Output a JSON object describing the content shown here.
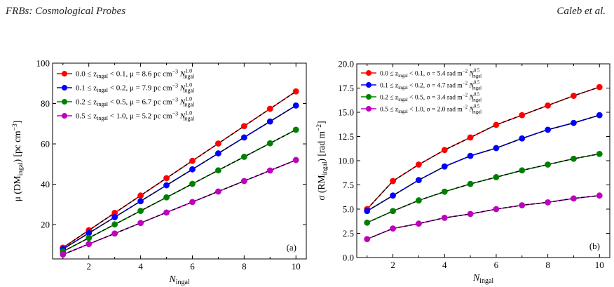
{
  "header": {
    "left": "FRBs: Cosmological Probes",
    "right": "Caleb et al."
  },
  "chart_data": [
    {
      "type": "line",
      "panel_label": "(a)",
      "xlabel_main": "N",
      "xlabel_sub": "ingal",
      "ylabel": "μ (DM",
      "ylabel_sub": "ingal",
      "ylabel_tail": ") [pc cm",
      "ylabel_sup": "−3",
      "ylabel_end": "]",
      "xlim": [
        0.6,
        10.4
      ],
      "ylim": [
        3,
        100
      ],
      "xticks": [
        2,
        4,
        6,
        8,
        10
      ],
      "yticks": [
        20,
        40,
        60,
        80,
        100
      ],
      "legend_position": "upper-left",
      "x": [
        1,
        2,
        3,
        4,
        5,
        6,
        7,
        8,
        9,
        10
      ],
      "series": [
        {
          "name": "0.0 ≤ z_ingal < 0.1, μ = 8.6 pc cm^-3 N_ingal^1.0",
          "label_range": "0.0 ≤ z",
          "label_range_sub": "ingal",
          "label_range_tail": " < 0.1, μ = 8.6 pc cm",
          "label_unit_sup": "−3",
          "label_var": " N",
          "label_var_sup": "1.0",
          "label_var_sub": "ingal",
          "color": "#ff0000",
          "values": [
            8.6,
            17.2,
            25.8,
            34.4,
            43.0,
            51.6,
            60.2,
            68.8,
            77.4,
            86.0
          ]
        },
        {
          "name": "0.1 ≤ z_ingal < 0.2, μ = 7.9 pc cm^-3 N_ingal^1.0",
          "label_range": "0.1 ≤ z",
          "label_range_sub": "ingal",
          "label_range_tail": " < 0.2, μ = 7.9 pc cm",
          "label_unit_sup": "−3",
          "label_var": " N",
          "label_var_sup": "1.0",
          "label_var_sub": "ingal",
          "color": "#0000ff",
          "values": [
            7.9,
            15.8,
            23.7,
            31.6,
            39.5,
            47.4,
            55.3,
            63.2,
            71.1,
            79.0
          ]
        },
        {
          "name": "0.2 ≤ z_ingal < 0.5, μ = 6.7 pc cm^-3 N_ingal^1.0",
          "label_range": "0.2 ≤ z",
          "label_range_sub": "ingal",
          "label_range_tail": " < 0.5, μ = 6.7 pc cm",
          "label_unit_sup": "−3",
          "label_var": " N",
          "label_var_sup": "1.0",
          "label_var_sub": "ingal",
          "color": "#008000",
          "values": [
            6.7,
            13.4,
            20.1,
            26.8,
            33.5,
            40.2,
            46.9,
            53.6,
            60.3,
            67.0
          ]
        },
        {
          "name": "0.5 ≤ z_ingal < 1.0, μ = 5.2 pc cm^-3 N_ingal^1.0",
          "label_range": "0.5 ≤ z",
          "label_range_sub": "ingal",
          "label_range_tail": " < 1.0, μ = 5.2 pc cm",
          "label_unit_sup": "−3",
          "label_var": " N",
          "label_var_sup": "1.0",
          "label_var_sub": "ingal",
          "color": "#bf00bf",
          "values": [
            5.2,
            10.4,
            15.6,
            20.8,
            26.0,
            31.2,
            36.4,
            41.6,
            46.8,
            52.0
          ]
        }
      ],
      "fit_color": "#000000"
    },
    {
      "type": "line",
      "panel_label": "(b)",
      "xlabel_main": "N",
      "xlabel_sub": "ingal",
      "ylabel": "σ (RM",
      "ylabel_sub": "ingal",
      "ylabel_tail": ") [rad m",
      "ylabel_sup": "−2",
      "ylabel_end": "]",
      "xlim": [
        0.6,
        10.4
      ],
      "ylim": [
        0,
        20
      ],
      "xticks": [
        2,
        4,
        6,
        8,
        10
      ],
      "yticks": [
        0.0,
        2.5,
        5.0,
        7.5,
        10.0,
        12.5,
        15.0,
        17.5,
        20.0
      ],
      "ytick_labels": [
        "0.0",
        "2.5",
        "5.0",
        "7.5",
        "10.0",
        "12.5",
        "15.0",
        "17.5",
        "20.0"
      ],
      "legend_position": "upper-left",
      "x": [
        1,
        2,
        3,
        4,
        5,
        6,
        7,
        8,
        9,
        10
      ],
      "series": [
        {
          "name": "0.0 ≤ z_ingal < 0.1, σ = 5.4 rad m^-2 N_ingal^0.5",
          "label_range": "0.0 ≤ z",
          "label_range_sub": "ingal",
          "label_range_tail": " < 0.1, σ = 5.4 rad m",
          "label_unit_sup": "−2",
          "label_var": " N",
          "label_var_sup": "0.5",
          "label_var_sub": "ingal",
          "color": "#ff0000",
          "values": [
            5.0,
            7.9,
            9.6,
            11.1,
            12.4,
            13.7,
            14.7,
            15.7,
            16.7,
            17.6
          ]
        },
        {
          "name": "0.1 ≤ z_ingal < 0.2, σ = 4.7 rad m^-2 N_ingal^0.5",
          "label_range": "0.1 ≤ z",
          "label_range_sub": "ingal",
          "label_range_tail": " < 0.2, σ = 4.7 rad m",
          "label_unit_sup": "−2",
          "label_var": " N",
          "label_var_sup": "0.5",
          "label_var_sub": "ingal",
          "color": "#0000ff",
          "values": [
            4.8,
            6.4,
            8.0,
            9.4,
            10.5,
            11.3,
            12.3,
            13.2,
            13.9,
            14.7
          ]
        },
        {
          "name": "0.2 ≤ z_ingal < 0.5, σ = 3.4 rad m^-2 N_ingal^0.5",
          "label_range": "0.2 ≤ z",
          "label_range_sub": "ingal",
          "label_range_tail": " < 0.5, σ = 3.4 rad m",
          "label_unit_sup": "−2",
          "label_var": " N",
          "label_var_sup": "0.5",
          "label_var_sub": "ingal",
          "color": "#008000",
          "values": [
            3.6,
            4.8,
            5.9,
            6.8,
            7.6,
            8.3,
            9.0,
            9.6,
            10.2,
            10.7
          ]
        },
        {
          "name": "0.5 ≤ z_ingal < 1.0, σ = 2.0 rad m^-2 N_ingal^0.5",
          "label_range": "0.5 ≤ z",
          "label_range_sub": "ingal",
          "label_range_tail": " < 1.0, σ = 2.0 rad m",
          "label_unit_sup": "−2",
          "label_var": " N",
          "label_var_sup": "0.5",
          "label_var_sub": "ingal",
          "color": "#bf00bf",
          "values": [
            1.9,
            3.0,
            3.5,
            4.1,
            4.5,
            5.0,
            5.4,
            5.7,
            6.1,
            6.4
          ]
        }
      ],
      "fit_color": "#000000"
    }
  ]
}
